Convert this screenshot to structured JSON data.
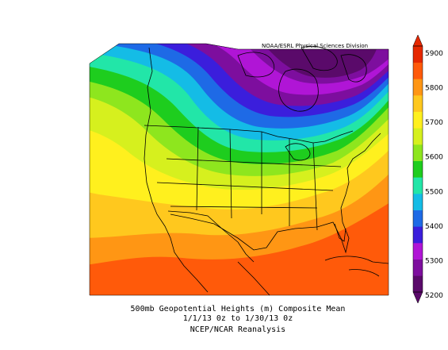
{
  "credit": "NOAA/ESRL Physical Sciences Division",
  "caption": {
    "line1": "500mb Geopotential Heights (m)   Composite Mean",
    "line2": "1/1/13 0z  to 1/30/13 0z",
    "line3": "NCEP/NCAR Reanalysis"
  },
  "legend": {
    "labels": [
      "5200",
      "5300",
      "5400",
      "5500",
      "5600",
      "5700",
      "5800",
      "5900"
    ],
    "colors": [
      "#5a0a6a",
      "#7d0e9e",
      "#b015d6",
      "#3b1edc",
      "#1e6ae6",
      "#14bce6",
      "#22e6a8",
      "#1ecd1e",
      "#8ee61e",
      "#d6f01e",
      "#fff01e",
      "#ffc81e",
      "#ff9614",
      "#ff5a0a",
      "#e62800"
    ]
  }
}
